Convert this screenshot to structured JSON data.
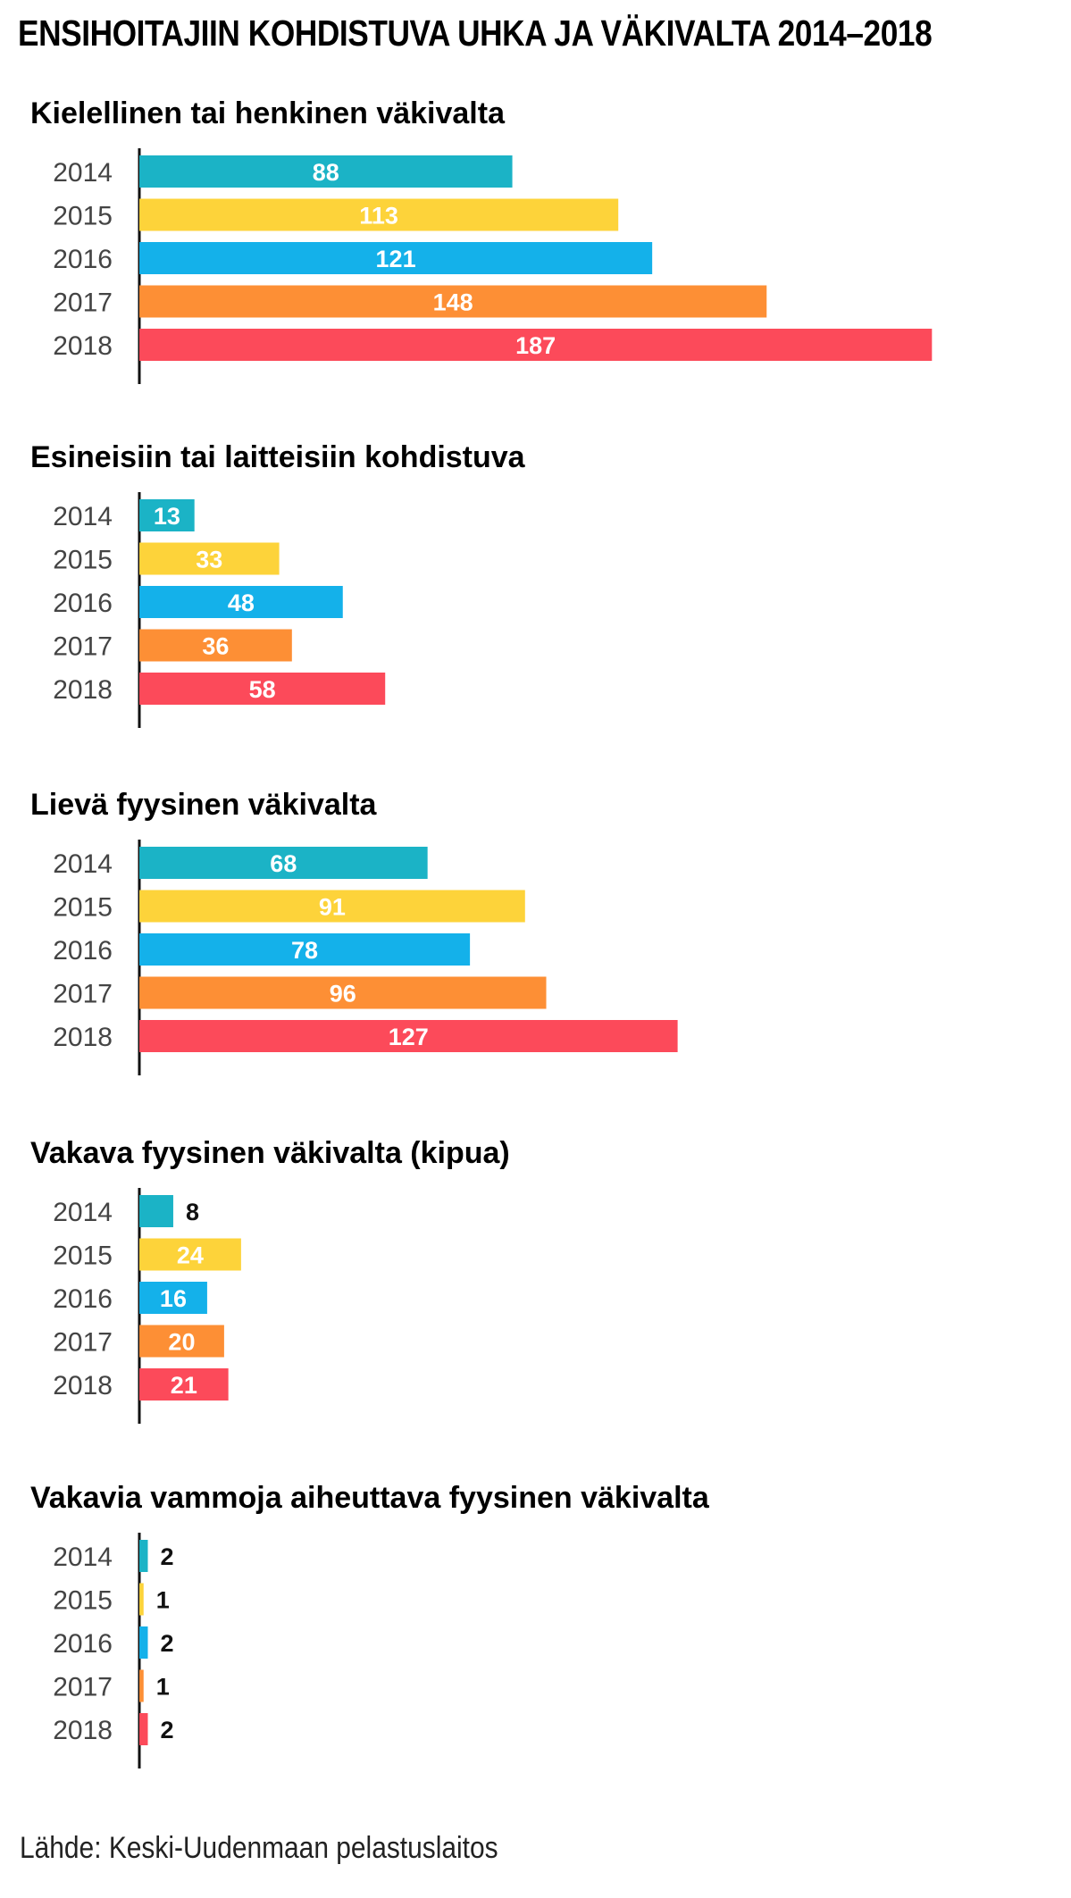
{
  "title": "ENSIHOITAJIIN KOHDISTUVA UHKA JA VÄKIVALTA 2014–2018",
  "source": "Lähde: Keski-Uudenmaan pelastuslaitos",
  "colors": {
    "2014": "#1bb3c6",
    "2015": "#fdd33a",
    "2016": "#14b1ea",
    "2017": "#fd8f35",
    "2018": "#fc4a5a"
  },
  "chart_data": [
    {
      "type": "bar",
      "orientation": "horizontal",
      "title": "Kielellinen tai henkinen väkivalta",
      "categories": [
        "2014",
        "2015",
        "2016",
        "2017",
        "2018"
      ],
      "values": [
        88,
        113,
        121,
        148,
        187
      ]
    },
    {
      "type": "bar",
      "orientation": "horizontal",
      "title": "Esineisiin tai laitteisiin kohdistuva",
      "categories": [
        "2014",
        "2015",
        "2016",
        "2017",
        "2018"
      ],
      "values": [
        13,
        33,
        48,
        36,
        58
      ]
    },
    {
      "type": "bar",
      "orientation": "horizontal",
      "title": "Lievä fyysinen väkivalta",
      "categories": [
        "2014",
        "2015",
        "2016",
        "2017",
        "2018"
      ],
      "values": [
        68,
        91,
        78,
        96,
        127
      ]
    },
    {
      "type": "bar",
      "orientation": "horizontal",
      "title": "Vakava fyysinen väkivalta (kipua)",
      "categories": [
        "2014",
        "2015",
        "2016",
        "2017",
        "2018"
      ],
      "values": [
        8,
        24,
        16,
        20,
        21
      ]
    },
    {
      "type": "bar",
      "orientation": "horizontal",
      "title": "Vakavia vammoja aiheuttava fyysinen väkivalta",
      "categories": [
        "2014",
        "2015",
        "2016",
        "2017",
        "2018"
      ],
      "values": [
        2,
        1,
        2,
        1,
        2
      ]
    }
  ]
}
